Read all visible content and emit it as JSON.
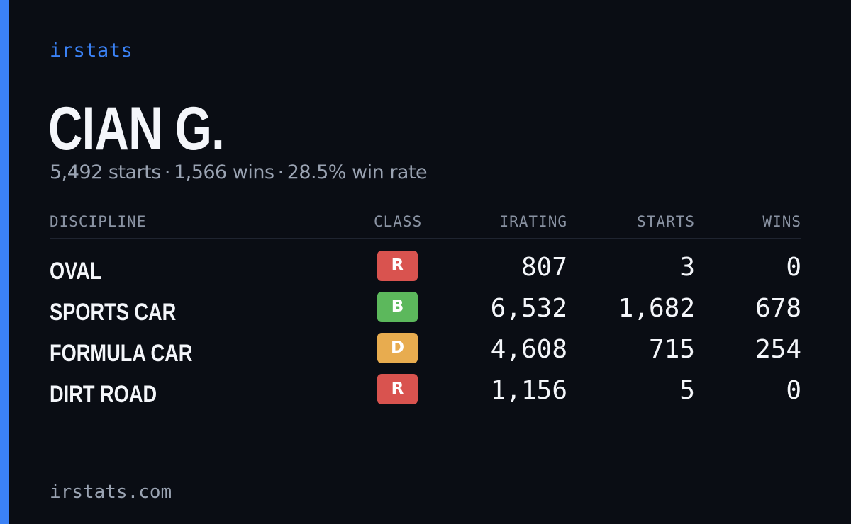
{
  "brand": "irstats",
  "player": {
    "name": "CIAN G.",
    "summary": {
      "starts": "5,492 starts",
      "wins": "1,566 wins",
      "win_rate": "28.5% win rate",
      "separator": "·"
    }
  },
  "table": {
    "headers": {
      "discipline": "DISCIPLINE",
      "class": "CLASS",
      "irating": "IRATING",
      "starts": "STARTS",
      "wins": "WINS"
    },
    "rows": [
      {
        "discipline": "OVAL",
        "class": "R",
        "class_color": "#d9534f",
        "irating": "807",
        "starts": "3",
        "wins": "0"
      },
      {
        "discipline": "SPORTS CAR",
        "class": "B",
        "class_color": "#5cb85c",
        "irating": "6,532",
        "starts": "1,682",
        "wins": "678"
      },
      {
        "discipline": "FORMULA CAR",
        "class": "D",
        "class_color": "#e8ac4f",
        "irating": "4,608",
        "starts": "715",
        "wins": "254"
      },
      {
        "discipline": "DIRT ROAD",
        "class": "R",
        "class_color": "#d9534f",
        "irating": "1,156",
        "starts": "5",
        "wins": "0"
      }
    ]
  },
  "footer": "irstats.com",
  "colors": {
    "background": "#0a0d14",
    "accent": "#3b82f6",
    "muted_text": "#9aa3b2"
  }
}
